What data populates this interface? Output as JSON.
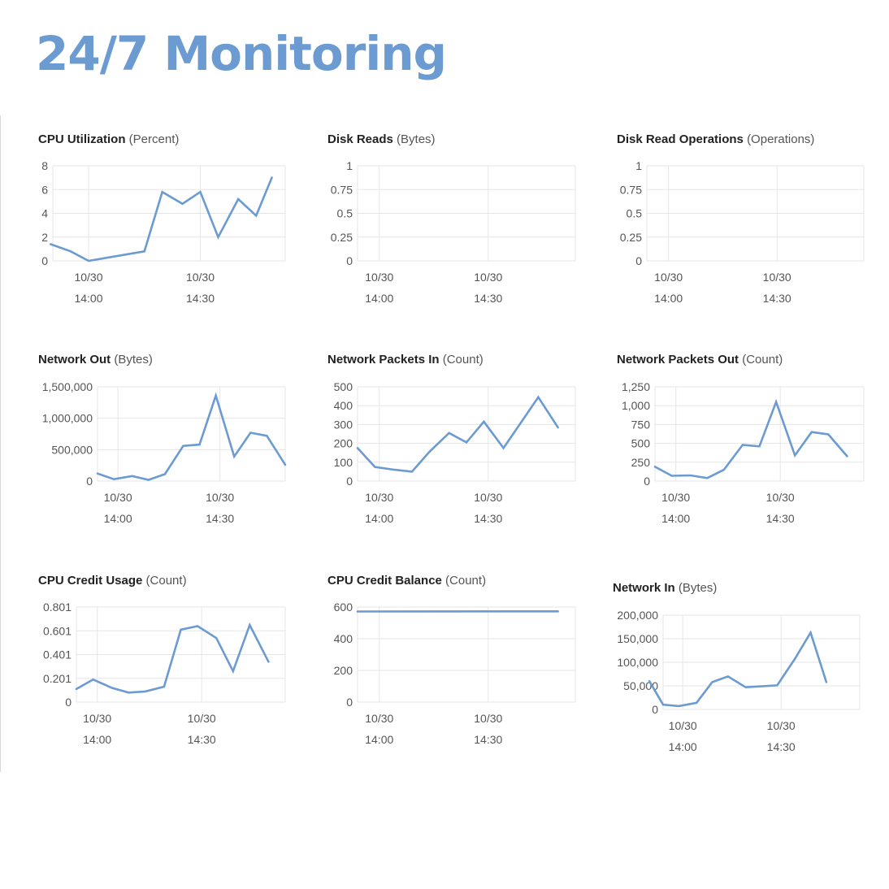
{
  "page": {
    "title": "24/7 Monitoring"
  },
  "style": {
    "accent": "#6b9bd1",
    "line": "#6b9bd1",
    "grid": "#e6e6e6",
    "text": "#555555"
  },
  "chart_data": [
    {
      "id": "cpu",
      "type": "line",
      "metric": "CPU Utilization",
      "unit": "(Percent)",
      "yticks": [
        "8",
        "6",
        "4",
        "2",
        "0"
      ],
      "ylim": [
        0,
        8
      ],
      "xticks": [
        {
          "t": 14.0,
          "top": "10/30",
          "bottom": "14:00"
        },
        {
          "t": 14.5,
          "top": "10/30",
          "bottom": "14:30"
        }
      ],
      "xlim": [
        13.84,
        14.88
      ],
      "grid": true,
      "series": [
        {
          "x": [
            13.83,
            13.92,
            14.0,
            14.25,
            14.33,
            14.42,
            14.5,
            14.58,
            14.67,
            14.75,
            14.82
          ],
          "y": [
            1.4,
            0.8,
            0.0,
            0.8,
            5.8,
            4.8,
            5.8,
            2.0,
            5.2,
            3.8,
            7.0
          ]
        }
      ]
    },
    {
      "id": "disk-reads",
      "type": "line",
      "metric": "Disk Reads",
      "unit": "(Bytes)",
      "yticks": [
        "1",
        "0.75",
        "0.5",
        "0.25",
        "0"
      ],
      "ylim": [
        0,
        1
      ],
      "xticks": [
        {
          "t": 14.0,
          "top": "10/30",
          "bottom": "14:00"
        },
        {
          "t": 14.5,
          "top": "10/30",
          "bottom": "14:30"
        }
      ],
      "xlim": [
        13.9,
        14.9
      ],
      "grid": true,
      "series": []
    },
    {
      "id": "disk-read-ops",
      "type": "line",
      "metric": "Disk Read Operations",
      "unit": "(Operations)",
      "yticks": [
        "1",
        "0.75",
        "0.5",
        "0.25",
        "0"
      ],
      "ylim": [
        0,
        1
      ],
      "xticks": [
        {
          "t": 14.0,
          "top": "10/30",
          "bottom": "14:00"
        },
        {
          "t": 14.5,
          "top": "10/30",
          "bottom": "14:30"
        }
      ],
      "xlim": [
        13.9,
        14.9
      ],
      "grid": true,
      "series": []
    },
    {
      "id": "net-out",
      "type": "line",
      "metric": "Network Out",
      "unit": "(Bytes)",
      "yticks": [
        "1,500,000",
        "1,000,000",
        "500,000",
        "0"
      ],
      "ylim": [
        0,
        1500000
      ],
      "xticks": [
        {
          "t": 14.0,
          "top": "10/30",
          "bottom": "14:00"
        },
        {
          "t": 14.5,
          "top": "10/30",
          "bottom": "14:30"
        }
      ],
      "xlim": [
        13.9,
        14.82
      ],
      "grid": true,
      "series": [
        {
          "x": [
            13.9,
            13.98,
            14.07,
            14.15,
            14.23,
            14.32,
            14.4,
            14.48,
            14.57,
            14.65,
            14.73,
            14.82
          ],
          "y": [
            120000,
            30000,
            80000,
            20000,
            110000,
            560000,
            580000,
            1360000,
            390000,
            770000,
            720000,
            260000
          ]
        }
      ]
    },
    {
      "id": "net-packets-in",
      "type": "line",
      "metric": "Network Packets In",
      "unit": "(Count)",
      "yticks": [
        "500",
        "400",
        "300",
        "200",
        "100",
        "0"
      ],
      "ylim": [
        0,
        500
      ],
      "xticks": [
        {
          "t": 14.0,
          "top": "10/30",
          "bottom": "14:00"
        },
        {
          "t": 14.5,
          "top": "10/30",
          "bottom": "14:30"
        }
      ],
      "xlim": [
        13.9,
        14.9
      ],
      "grid": true,
      "series": [
        {
          "x": [
            13.9,
            13.98,
            14.07,
            14.15,
            14.23,
            14.32,
            14.4,
            14.48,
            14.57,
            14.65,
            14.73,
            14.82
          ],
          "y": [
            175,
            75,
            60,
            50,
            155,
            255,
            205,
            315,
            175,
            310,
            445,
            285
          ]
        }
      ]
    },
    {
      "id": "net-packets-out",
      "type": "line",
      "metric": "Network Packets Out",
      "unit": "(Count)",
      "yticks": [
        "1,250",
        "1,000",
        "750",
        "500",
        "250",
        "0"
      ],
      "ylim": [
        0,
        1250
      ],
      "xticks": [
        {
          "t": 14.0,
          "top": "10/30",
          "bottom": "14:00"
        },
        {
          "t": 14.5,
          "top": "10/30",
          "bottom": "14:30"
        }
      ],
      "xlim": [
        13.9,
        14.9
      ],
      "grid": true,
      "series": [
        {
          "x": [
            13.9,
            13.98,
            14.07,
            14.15,
            14.23,
            14.32,
            14.4,
            14.48,
            14.57,
            14.65,
            14.73,
            14.82
          ],
          "y": [
            190,
            70,
            75,
            40,
            150,
            480,
            460,
            1050,
            340,
            650,
            620,
            330
          ]
        }
      ]
    },
    {
      "id": "cpu-credit-usage",
      "type": "line",
      "metric": "CPU Credit Usage",
      "unit": "(Count)",
      "yticks": [
        "0.801",
        "0.601",
        "0.401",
        "0.201",
        "0"
      ],
      "ylim": [
        0,
        0.801
      ],
      "xticks": [
        {
          "t": 14.0,
          "top": "10/30",
          "bottom": "14:00"
        },
        {
          "t": 14.5,
          "top": "10/30",
          "bottom": "14:30"
        }
      ],
      "xlim": [
        13.9,
        14.9
      ],
      "grid": true,
      "series": [
        {
          "x": [
            13.9,
            13.98,
            14.07,
            14.15,
            14.23,
            14.32,
            14.4,
            14.48,
            14.57,
            14.65,
            14.73,
            14.82
          ],
          "y": [
            0.11,
            0.19,
            0.12,
            0.08,
            0.09,
            0.13,
            0.61,
            0.64,
            0.54,
            0.26,
            0.65,
            0.34
          ]
        }
      ]
    },
    {
      "id": "cpu-credit-balance",
      "type": "line",
      "metric": "CPU Credit Balance",
      "unit": "(Count)",
      "yticks": [
        "600",
        "400",
        "200",
        "0"
      ],
      "ylim": [
        0,
        600
      ],
      "xticks": [
        {
          "t": 14.0,
          "top": "10/30",
          "bottom": "14:00"
        },
        {
          "t": 14.5,
          "top": "10/30",
          "bottom": "14:30"
        }
      ],
      "xlim": [
        13.9,
        14.9
      ],
      "grid": true,
      "series": [
        {
          "x": [
            13.9,
            14.82
          ],
          "y": [
            572,
            573
          ]
        }
      ]
    },
    {
      "id": "net-in",
      "type": "line",
      "metric": "Network In",
      "unit": "(Bytes)",
      "yticks": [
        "200,000",
        "150,000",
        "100,000",
        "50,000",
        "0"
      ],
      "ylim": [
        0,
        200000
      ],
      "xticks": [
        {
          "t": 14.0,
          "top": "10/30",
          "bottom": "14:00"
        },
        {
          "t": 14.5,
          "top": "10/30",
          "bottom": "14:30"
        }
      ],
      "xlim": [
        13.9,
        14.9
      ],
      "grid": true,
      "series": [
        {
          "x": [
            13.83,
            13.9,
            13.98,
            14.07,
            14.15,
            14.23,
            14.32,
            14.4,
            14.48,
            14.57,
            14.65,
            14.73
          ],
          "y": [
            60000,
            10000,
            7000,
            14000,
            58000,
            70000,
            47000,
            49000,
            51000,
            107000,
            163000,
            58000
          ]
        }
      ]
    }
  ]
}
